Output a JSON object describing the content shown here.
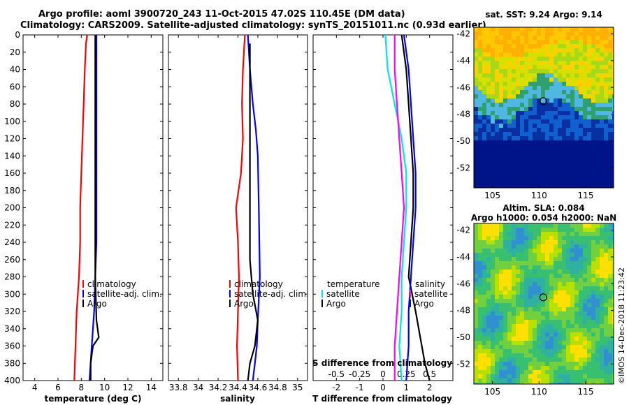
{
  "header": {
    "line1": "Argo profile: aoml 3900720_243 11-Oct-2015 47.02S 110.45E (DM data)",
    "line2": "Climatology: CARS2009. Satellite-adjusted climatology: synTS_20151011.nc (0.93d earlier)"
  },
  "colors": {
    "climatology": "#ff0000",
    "satellite": "#0000ff",
    "argo": "#000000",
    "t_diff": "#00e5e5",
    "s_diff": "#ff00ff"
  },
  "chart_data": [
    {
      "id": "temperature",
      "type": "line",
      "xlabel": "temperature (deg C)",
      "xlim": [
        3,
        15
      ],
      "ylim": [
        400,
        0
      ],
      "xticks": [
        4,
        6,
        8,
        10,
        12,
        14
      ],
      "yticks": [
        0,
        20,
        40,
        60,
        80,
        100,
        120,
        140,
        160,
        180,
        200,
        220,
        240,
        260,
        280,
        300,
        320,
        340,
        360,
        380,
        400
      ],
      "legend": [
        "climatology",
        "satellite-adj. clim.",
        "Argo"
      ],
      "series": [
        {
          "name": "climatology",
          "color": "red",
          "points": [
            [
              8.5,
              0
            ],
            [
              8.4,
              10
            ],
            [
              8.3,
              40
            ],
            [
              8.2,
              80
            ],
            [
              8.1,
              120
            ],
            [
              8.0,
              160
            ],
            [
              7.9,
              200
            ],
            [
              7.9,
              240
            ],
            [
              7.8,
              280
            ],
            [
              7.6,
              320
            ],
            [
              7.5,
              360
            ],
            [
              7.4,
              400
            ]
          ]
        },
        {
          "name": "satellite-adj. clim.",
          "color": "blue",
          "points": [
            [
              9.3,
              0
            ],
            [
              9.3,
              40
            ],
            [
              9.3,
              80
            ],
            [
              9.3,
              120
            ],
            [
              9.3,
              160
            ],
            [
              9.3,
              200
            ],
            [
              9.3,
              240
            ],
            [
              9.2,
              280
            ],
            [
              9.1,
              320
            ],
            [
              8.9,
              360
            ],
            [
              8.7,
              400
            ]
          ]
        },
        {
          "name": "Argo",
          "color": "black",
          "points": [
            [
              9.2,
              0
            ],
            [
              9.2,
              100
            ],
            [
              9.2,
              200
            ],
            [
              9.2,
              280
            ],
            [
              9.3,
              330
            ],
            [
              9.5,
              350
            ],
            [
              9.0,
              360
            ],
            [
              8.8,
              380
            ],
            [
              8.8,
              400
            ]
          ]
        }
      ]
    },
    {
      "id": "salinity",
      "type": "line",
      "xlabel": "salinity",
      "xlim": [
        33.7,
        35.1
      ],
      "ylim": [
        400,
        0
      ],
      "xticks": [
        33.8,
        34,
        34.2,
        34.4,
        34.6,
        34.8,
        35
      ],
      "legend": [
        "climatology",
        "satellite-adj. clim.",
        "Argo"
      ],
      "series": [
        {
          "name": "climatology",
          "color": "red",
          "points": [
            [
              34.47,
              0
            ],
            [
              34.45,
              40
            ],
            [
              34.44,
              80
            ],
            [
              34.45,
              120
            ],
            [
              34.43,
              160
            ],
            [
              34.38,
              200
            ],
            [
              34.4,
              240
            ],
            [
              34.41,
              280
            ],
            [
              34.4,
              320
            ],
            [
              34.39,
              360
            ],
            [
              34.4,
              400
            ]
          ]
        },
        {
          "name": "satellite-adj. clim.",
          "color": "blue",
          "points": [
            [
              34.5,
              0
            ],
            [
              34.52,
              40
            ],
            [
              34.55,
              80
            ],
            [
              34.58,
              110
            ],
            [
              34.6,
              140
            ],
            [
              34.61,
              200
            ],
            [
              34.62,
              280
            ],
            [
              34.6,
              330
            ],
            [
              34.59,
              360
            ],
            [
              34.57,
              380
            ],
            [
              34.55,
              400
            ]
          ]
        },
        {
          "name": "Argo",
          "color": "black",
          "points": [
            [
              34.52,
              10
            ],
            [
              34.52,
              100
            ],
            [
              34.52,
              200
            ],
            [
              34.52,
              260
            ],
            [
              34.55,
              300
            ],
            [
              34.6,
              330
            ],
            [
              34.57,
              360
            ],
            [
              34.52,
              380
            ],
            [
              34.5,
              400
            ]
          ]
        }
      ]
    },
    {
      "id": "difference",
      "type": "line",
      "xlabel": "T difference from climatology",
      "xlabel2": "S difference from climatology",
      "xlim": [
        -3,
        3
      ],
      "ylim": [
        400,
        0
      ],
      "xticks": [
        -2,
        -1,
        0,
        1,
        2
      ],
      "xticks2": [
        -0.5,
        -0.25,
        0,
        0.25,
        0.5
      ],
      "legend_t_title": "temperature",
      "legend_s_title": "salinity",
      "legend_satellite": "satellite",
      "legend_argo": "Argo",
      "series": [
        {
          "name": "T satellite",
          "color": "cyan",
          "points": [
            [
              0.1,
              0
            ],
            [
              0.2,
              40
            ],
            [
              0.5,
              80
            ],
            [
              0.8,
              120
            ],
            [
              1.0,
              160
            ],
            [
              1.0,
              200
            ],
            [
              0.9,
              240
            ],
            [
              0.8,
              280
            ],
            [
              0.8,
              320
            ],
            [
              0.7,
              360
            ],
            [
              0.8,
              400
            ]
          ]
        },
        {
          "name": "S satellite",
          "color": "magenta",
          "points": [
            [
              0.5,
              0
            ],
            [
              0.5,
              40
            ],
            [
              0.6,
              80
            ],
            [
              0.7,
              120
            ],
            [
              0.8,
              160
            ],
            [
              0.9,
              200
            ],
            [
              0.8,
              240
            ],
            [
              0.7,
              280
            ],
            [
              0.6,
              320
            ],
            [
              0.5,
              360
            ],
            [
              0.5,
              400
            ]
          ]
        },
        {
          "name": "T argo",
          "color": "black",
          "points": [
            [
              0.8,
              0
            ],
            [
              1.0,
              40
            ],
            [
              1.1,
              80
            ],
            [
              1.2,
              120
            ],
            [
              1.3,
              160
            ],
            [
              1.3,
              200
            ],
            [
              1.2,
              240
            ],
            [
              1.1,
              280
            ],
            [
              1.4,
              320
            ],
            [
              1.6,
              350
            ],
            [
              1.8,
              380
            ],
            [
              2.0,
              400
            ]
          ]
        },
        {
          "name": "S argo",
          "color": "blue",
          "points": [
            [
              0.9,
              0
            ],
            [
              1.1,
              40
            ],
            [
              1.2,
              80
            ],
            [
              1.3,
              120
            ],
            [
              1.4,
              160
            ],
            [
              1.4,
              200
            ],
            [
              1.3,
              240
            ],
            [
              1.2,
              280
            ],
            [
              1.1,
              320
            ],
            [
              1.1,
              360
            ],
            [
              1.0,
              400
            ]
          ]
        }
      ]
    },
    {
      "id": "sst_map",
      "type": "heatmap",
      "title": "sat. SST: 9.24 Argo: 9.14",
      "xticks": [
        105,
        110,
        115
      ],
      "yticks": [
        -42,
        -44,
        -46,
        -48,
        -50,
        -52
      ],
      "xlim": [
        103,
        118
      ],
      "ylim": [
        -53.5,
        -41.5
      ],
      "marker": [
        110.45,
        -47.02
      ]
    },
    {
      "id": "sla_map",
      "type": "heatmap",
      "title1": "Altim. SLA: 0.084",
      "title2": "Argo h1000: 0.054 h2000: NaN",
      "xticks": [
        105,
        110,
        115
      ],
      "yticks": [
        -42,
        -44,
        -46,
        -48,
        -50,
        -52
      ],
      "xlim": [
        103,
        118
      ],
      "ylim": [
        -53.5,
        -41.5
      ],
      "marker": [
        110.45,
        -47.02
      ]
    }
  ],
  "footer": "©IMOS 14-Dec-2018 11:23:42"
}
